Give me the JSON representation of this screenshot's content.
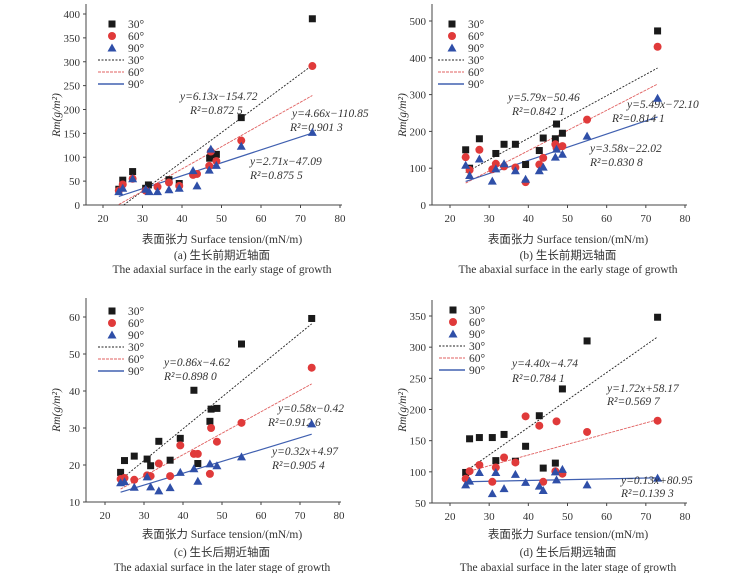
{
  "chart_data": [
    {
      "type": "scatter",
      "id": "a",
      "caption_cn": "(a) 生长前期近轴面",
      "caption_en": "The adaxial surface in the early stage of growth",
      "xlabel": "表面张力 Surface tension/(mN/m)",
      "ylabel": "Rm(g/m²)",
      "xlim": [
        15,
        80
      ],
      "ylim": [
        0,
        420
      ],
      "xticks": [
        20,
        30,
        40,
        50,
        60,
        70,
        80
      ],
      "yticks": [
        0,
        50,
        100,
        150,
        200,
        250,
        300,
        350,
        400
      ],
      "legend": [
        "30°",
        "60°",
        "90°",
        "30°",
        "60°",
        "90°"
      ],
      "series": [
        {
          "name": "30°",
          "marker": "square",
          "color": "#1a1a1a",
          "x": [
            24,
            25,
            27.5,
            30.8,
            31.5,
            36.7,
            39.3,
            47,
            47.3,
            48.7,
            55,
            73
          ],
          "y": [
            33,
            52,
            70,
            35,
            42,
            53,
            45,
            98,
            105,
            106,
            183,
            390
          ],
          "fit": {
            "slope": 6.13,
            "intercept": -154.72,
            "equation": "y=6.13x−154.72",
            "r2": "R²=0.872 5"
          }
        },
        {
          "name": "60°",
          "marker": "circle",
          "color": "#e03a3a",
          "x": [
            24,
            25,
            27.5,
            30.8,
            33.8,
            36.7,
            39.3,
            42.8,
            43.8,
            46.9,
            47.3,
            48.7,
            55,
            73
          ],
          "y": [
            30,
            43,
            55,
            30,
            38,
            47,
            40,
            63,
            65,
            82,
            112,
            92,
            135,
            291
          ],
          "fit": {
            "slope": 4.66,
            "intercept": -110.85,
            "equation": "y=4.66x−110.85",
            "r2": "R²=0.901 3"
          }
        },
        {
          "name": "90°",
          "marker": "triangle",
          "color": "#2f4fa8",
          "x": [
            24,
            25,
            27.5,
            30.8,
            31.7,
            33.8,
            36.7,
            39.3,
            42.8,
            43.8,
            46.9,
            47.3,
            48.7,
            55,
            73
          ],
          "y": [
            28,
            35,
            55,
            33,
            28,
            28,
            32,
            35,
            72,
            40,
            73,
            117,
            83,
            123,
            152
          ],
          "fit": {
            "slope": 2.71,
            "intercept": -47.09,
            "equation": "y=2.71x−47.09",
            "r2": "R²=0.875 5"
          }
        }
      ]
    },
    {
      "type": "scatter",
      "id": "b",
      "caption_cn": "(b) 生长前期远轴面",
      "caption_en": "The abaxial surface in the early stage of growth",
      "xlabel": "表面张力 Surface tension/(mN/m)",
      "ylabel": "Rm(g/m²)",
      "xlim": [
        15,
        80
      ],
      "ylim": [
        0,
        540
      ],
      "xticks": [
        20,
        30,
        40,
        50,
        60,
        70,
        80
      ],
      "yticks": [
        0,
        100,
        200,
        300,
        400,
        500
      ],
      "legend": [
        "30°",
        "60°",
        "90°",
        "30°",
        "60°",
        "90°"
      ],
      "series": [
        {
          "name": "30°",
          "marker": "square",
          "color": "#1a1a1a",
          "x": [
            24,
            25,
            27.5,
            31.7,
            33.8,
            36.7,
            39.3,
            42.8,
            43.8,
            46.9,
            47.2,
            48.7,
            73
          ],
          "y": [
            150,
            100,
            180,
            140,
            165,
            165,
            110,
            148,
            182,
            180,
            220,
            195,
            473
          ],
          "fit": {
            "slope": 5.79,
            "intercept": -50.46,
            "equation": "y=5.79x−50.46",
            "r2": "R²=0.842 1"
          }
        },
        {
          "name": "60°",
          "marker": "circle",
          "color": "#e03a3a",
          "x": [
            24,
            25,
            27.5,
            30.8,
            31.7,
            33.8,
            36.7,
            39.3,
            42.8,
            43.8,
            46.9,
            47.2,
            48.7,
            55,
            73
          ],
          "y": [
            130,
            95,
            150,
            97,
            112,
            105,
            102,
            62,
            110,
            128,
            165,
            155,
            160,
            232,
            430
          ],
          "fit": {
            "slope": 5.49,
            "intercept": -72.1,
            "equation": "y=5.49x−72.10",
            "r2": "R²=0.814 1"
          }
        },
        {
          "name": "90°",
          "marker": "triangle",
          "color": "#2f4fa8",
          "x": [
            24,
            25,
            27.5,
            30.8,
            31.7,
            33.8,
            36.7,
            39.3,
            42.8,
            43.8,
            46.9,
            47.2,
            48.7,
            55,
            73
          ],
          "y": [
            108,
            80,
            125,
            65,
            98,
            112,
            93,
            70,
            93,
            103,
            130,
            152,
            138,
            187,
            290
          ],
          "fit": {
            "slope": 3.58,
            "intercept": -22.02,
            "equation": "y=3.58x−22.02",
            "r2": "R²=0.830 8"
          }
        }
      ]
    },
    {
      "type": "scatter",
      "id": "c",
      "caption_cn": "(c) 生长后期近轴面",
      "caption_en": "The adaxial surface in the later stage of growth",
      "xlabel": "表面张力 Surface tension/(mN/m)",
      "ylabel": "Rm(g/m²)",
      "xlim": [
        15,
        80
      ],
      "ylim": [
        10,
        65
      ],
      "xticks": [
        20,
        30,
        40,
        50,
        60,
        70,
        80
      ],
      "yticks": [
        10,
        20,
        30,
        40,
        50,
        60
      ],
      "legend": [
        "30°",
        "60°",
        "90°",
        "30°",
        "60°",
        "90°"
      ],
      "series": [
        {
          "name": "30°",
          "marker": "square",
          "color": "#1a1a1a",
          "x": [
            24,
            25,
            27.5,
            30.8,
            31.7,
            33.8,
            36.7,
            39.3,
            42.8,
            43.8,
            46.9,
            47.2,
            48.7,
            55,
            73
          ],
          "y": [
            18,
            21.2,
            22.4,
            21.6,
            19.8,
            26.4,
            21.3,
            27.2,
            40.2,
            20.4,
            31.8,
            35.1,
            35.3,
            52.7,
            59.6
          ],
          "fit": {
            "slope": 0.86,
            "intercept": -4.62,
            "equation": "y=0.86x−4.62",
            "r2": "R²=0.898 0"
          }
        },
        {
          "name": "60°",
          "marker": "circle",
          "color": "#e03a3a",
          "x": [
            24,
            25,
            27.5,
            30.8,
            31.7,
            33.8,
            36.7,
            39.3,
            42.8,
            43.8,
            46.9,
            47.2,
            48.7,
            55,
            73
          ],
          "y": [
            16.2,
            16.5,
            16,
            17.2,
            17,
            20.4,
            17,
            25.3,
            23,
            23,
            17.6,
            30,
            26.3,
            31.4,
            46.3
          ],
          "fit": {
            "slope": 0.58,
            "intercept": -0.42,
            "equation": "y=0.58x−0.42",
            "r2": "R²=0.912 6"
          }
        },
        {
          "name": "90°",
          "marker": "triangle",
          "color": "#2f4fa8",
          "x": [
            24,
            25,
            27.5,
            30.8,
            31.7,
            33.8,
            36.7,
            39.3,
            42.8,
            43.8,
            46.9,
            48.7,
            55,
            73
          ],
          "y": [
            15.2,
            15.5,
            14,
            16.8,
            14.1,
            13,
            13.9,
            18,
            19,
            15.6,
            20.3,
            19.8,
            22.2,
            31.1
          ],
          "fit": {
            "slope": 0.32,
            "intercept": 4.97,
            "equation": "y=0.32x+4.97",
            "r2": "R²=0.905 4"
          }
        }
      ]
    },
    {
      "type": "scatter",
      "id": "d",
      "caption_cn": "(d) 生长后期远轴面",
      "caption_en": "The abaxial surface in the later stage of growth",
      "xlabel": "表面张力 Surface tension/(mN/m)",
      "ylabel": "Rm(g/m²)",
      "xlim": [
        15,
        80
      ],
      "ylim": [
        50,
        375
      ],
      "xticks": [
        20,
        30,
        40,
        50,
        60,
        70,
        80
      ],
      "yticks": [
        50,
        100,
        150,
        200,
        250,
        300,
        350
      ],
      "legend": [
        "30°",
        "60°",
        "90°",
        "30°",
        "60°",
        "90°"
      ],
      "series": [
        {
          "name": "30°",
          "marker": "square",
          "color": "#1a1a1a",
          "x": [
            24,
            25,
            27.5,
            30.8,
            31.7,
            33.8,
            36.7,
            39.3,
            42.8,
            43.8,
            46.9,
            48.7,
            55,
            73
          ],
          "y": [
            99,
            153,
            155,
            155,
            118,
            160,
            117,
            141,
            190,
            106,
            114,
            233,
            310,
            348
          ],
          "fit": {
            "slope": 4.4,
            "intercept": -4.74,
            "equation": "y=4.40x−4.74",
            "r2": "R²=0.784 1"
          }
        },
        {
          "name": "60°",
          "marker": "circle",
          "color": "#e03a3a",
          "x": [
            24,
            25,
            27.5,
            30.8,
            31.7,
            33.8,
            36.7,
            39.3,
            42.8,
            43.8,
            46.9,
            47.2,
            48.7,
            55,
            73
          ],
          "y": [
            89,
            101,
            111,
            84,
            107,
            123,
            115,
            189,
            174,
            84,
            101,
            181,
            97,
            164,
            182
          ],
          "fit": {
            "slope": 1.72,
            "intercept": 58.17,
            "equation": "y=1.72x+58.17",
            "r2": "R²=0.569 7"
          }
        },
        {
          "name": "90°",
          "marker": "triangle",
          "color": "#2f4fa8",
          "x": [
            24,
            25,
            27.5,
            30.8,
            31.7,
            33.8,
            36.7,
            39.3,
            42.8,
            43.8,
            46.9,
            47.2,
            48.7,
            55,
            73
          ],
          "y": [
            79,
            85,
            99,
            65,
            99,
            73,
            96,
            83,
            77,
            70,
            100,
            87,
            104,
            79,
            90
          ],
          "fit": {
            "slope": 0.13,
            "intercept": 80.95,
            "equation": "y=0.13x+80.95",
            "r2": "R²=0.139 3"
          }
        }
      ]
    }
  ]
}
